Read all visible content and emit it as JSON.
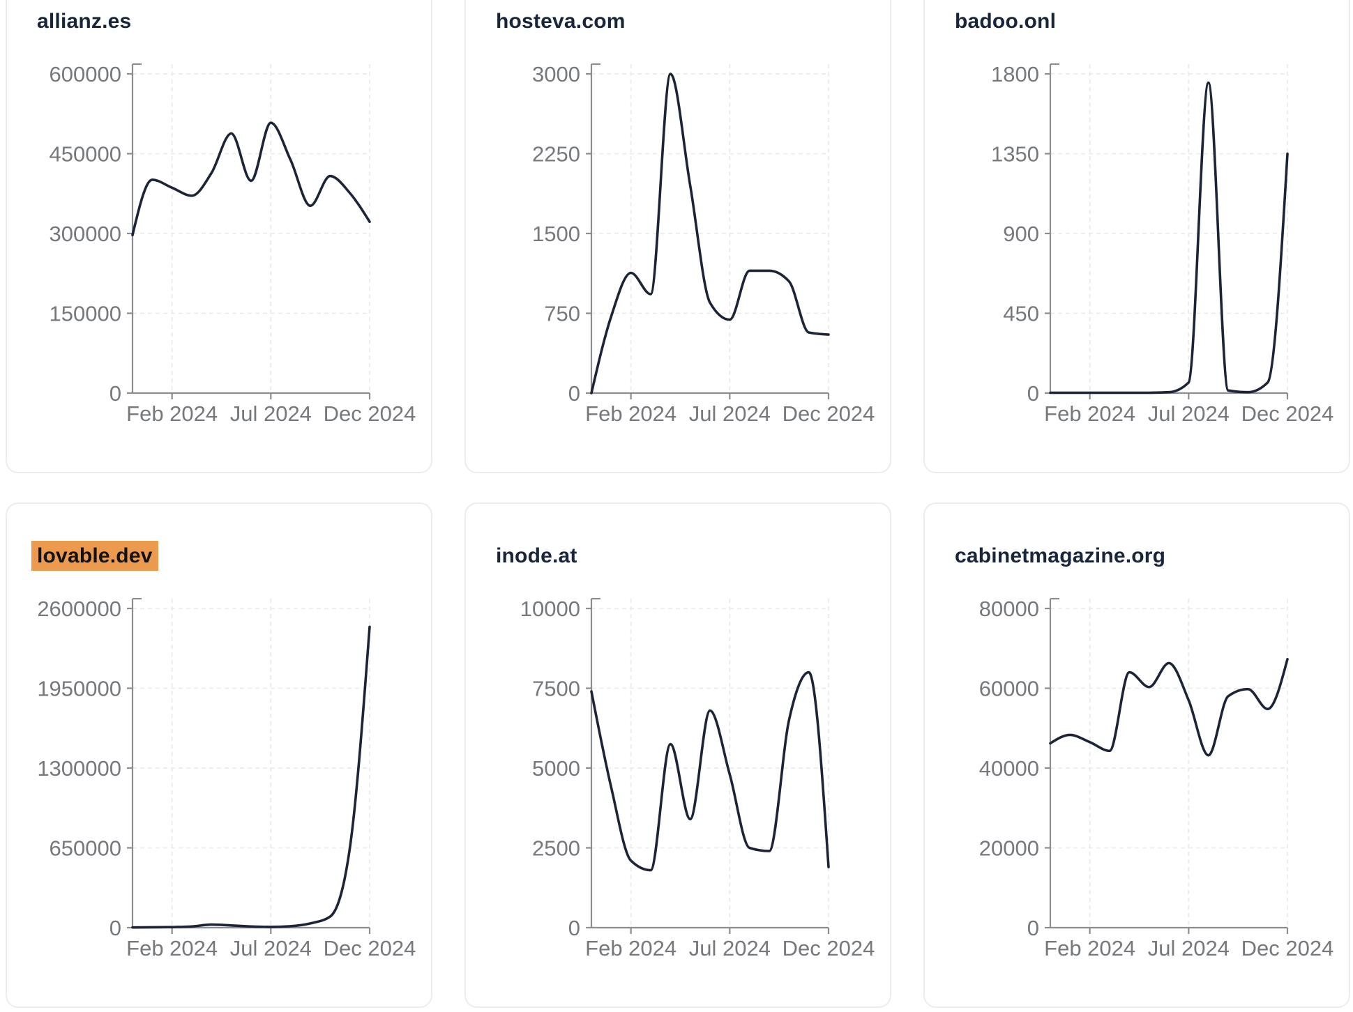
{
  "page": {
    "background": "#ffffff",
    "card_border_color": "#e9edf2",
    "x_tick_labels": [
      "Feb 2024",
      "Jul 2024",
      "Dec 2024"
    ]
  },
  "style": {
    "line_color": "#1c2438",
    "axis_color": "#8b8d90",
    "grid_color": "#e9e9e9",
    "label_color": "#75787c",
    "title_color": "#19253a",
    "highlight_color": "#EC9A4D",
    "highlight_text_color": "#121212"
  },
  "chart_data": [
    {
      "type": "line",
      "title": "allianz.es",
      "highlighted": false,
      "x": [
        "Dec 2023",
        "Jan 2024",
        "Feb 2024",
        "Mar 2024",
        "Apr 2024",
        "May 2024",
        "Jun 2024",
        "Jul 2024",
        "Aug 2024",
        "Sep 2024",
        "Oct 2024",
        "Nov 2024",
        "Dec 2024"
      ],
      "values": [
        297000,
        401000,
        386000,
        371000,
        414000,
        488000,
        399000,
        508000,
        438000,
        352000,
        408000,
        376000,
        322000
      ],
      "ylim": [
        0,
        600000
      ],
      "y_ticks": [
        0,
        150000,
        300000,
        450000,
        600000
      ],
      "x_tick_labels": [
        "Feb 2024",
        "Jul 2024",
        "Dec 2024"
      ],
      "grid": true,
      "legend": "none"
    },
    {
      "type": "line",
      "title": "hosteva.com",
      "highlighted": false,
      "x": [
        "Dec 2023",
        "Jan 2024",
        "Feb 2024",
        "Mar 2024",
        "Apr 2024",
        "May 2024",
        "Jun 2024",
        "Jul 2024",
        "Aug 2024",
        "Sep 2024",
        "Oct 2024",
        "Nov 2024",
        "Dec 2024"
      ],
      "values": [
        0,
        720,
        1130,
        930,
        3000,
        1950,
        850,
        690,
        1150,
        1150,
        1050,
        570,
        550
      ],
      "ylim": [
        0,
        3000
      ],
      "y_ticks": [
        0,
        750,
        1500,
        2250,
        3000
      ],
      "x_tick_labels": [
        "Feb 2024",
        "Jul 2024",
        "Dec 2024"
      ],
      "grid": true,
      "legend": "none"
    },
    {
      "type": "line",
      "title": "badoo.onl",
      "highlighted": false,
      "x": [
        "Dec 2023",
        "Jan 2024",
        "Feb 2024",
        "Mar 2024",
        "Apr 2024",
        "May 2024",
        "Jun 2024",
        "Jul 2024",
        "Aug 2024",
        "Sep 2024",
        "Oct 2024",
        "Nov 2024",
        "Dec 2024"
      ],
      "values": [
        2,
        2,
        2,
        2,
        2,
        2,
        5,
        60,
        1750,
        15,
        5,
        60,
        1350
      ],
      "ylim": [
        0,
        1800
      ],
      "y_ticks": [
        0,
        450,
        900,
        1350,
        1800
      ],
      "x_tick_labels": [
        "Feb 2024",
        "Jul 2024",
        "Dec 2024"
      ],
      "grid": true,
      "legend": "none"
    },
    {
      "type": "line",
      "title": "lovable.dev",
      "highlighted": true,
      "x": [
        "Dec 2023",
        "Jan 2024",
        "Feb 2024",
        "Mar 2024",
        "Apr 2024",
        "May 2024",
        "Jun 2024",
        "Jul 2024",
        "Aug 2024",
        "Sep 2024",
        "Oct 2024",
        "Nov 2024",
        "Dec 2024"
      ],
      "values": [
        2000,
        3000,
        5000,
        10000,
        25000,
        18000,
        10000,
        6000,
        12000,
        35000,
        90000,
        650000,
        2450000
      ],
      "ylim": [
        0,
        2600000
      ],
      "y_ticks": [
        0,
        650000,
        1300000,
        1950000,
        2600000
      ],
      "x_tick_labels": [
        "Feb 2024",
        "Jul 2024",
        "Dec 2024"
      ],
      "grid": true,
      "legend": "none"
    },
    {
      "type": "line",
      "title": "inode.at",
      "highlighted": false,
      "x": [
        "Dec 2023",
        "Jan 2024",
        "Feb 2024",
        "Mar 2024",
        "Apr 2024",
        "May 2024",
        "Jun 2024",
        "Jul 2024",
        "Aug 2024",
        "Sep 2024",
        "Oct 2024",
        "Nov 2024",
        "Dec 2024"
      ],
      "values": [
        7400,
        4400,
        2100,
        1800,
        5750,
        3400,
        6800,
        4800,
        2500,
        2400,
        6500,
        8000,
        1900
      ],
      "ylim": [
        0,
        10000
      ],
      "y_ticks": [
        0,
        2500,
        5000,
        7500,
        10000
      ],
      "x_tick_labels": [
        "Feb 2024",
        "Jul 2024",
        "Dec 2024"
      ],
      "grid": true,
      "legend": "none"
    },
    {
      "type": "line",
      "title": "cabinetmagazine.org",
      "highlighted": false,
      "x": [
        "Dec 2023",
        "Jan 2024",
        "Feb 2024",
        "Mar 2024",
        "Apr 2024",
        "May 2024",
        "Jun 2024",
        "Jul 2024",
        "Aug 2024",
        "Sep 2024",
        "Oct 2024",
        "Nov 2024",
        "Dec 2024"
      ],
      "values": [
        46200,
        48300,
        46500,
        44300,
        64000,
        60300,
        66300,
        57000,
        43200,
        58000,
        59800,
        54800,
        67300
      ],
      "ylim": [
        0,
        80000
      ],
      "y_ticks": [
        0,
        20000,
        40000,
        60000,
        80000
      ],
      "x_tick_labels": [
        "Feb 2024",
        "Jul 2024",
        "Dec 2024"
      ],
      "grid": true,
      "legend": "none"
    }
  ]
}
